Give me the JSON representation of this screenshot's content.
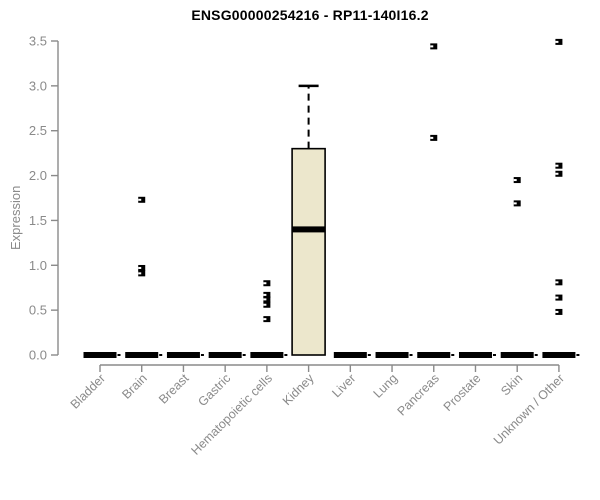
{
  "chart_data": {
    "type": "boxplot",
    "title": "ENSG00000254216 - RP11-140I16.2",
    "ylabel": "Expression",
    "xlabel": "",
    "ylim": [
      0,
      3.5
    ],
    "yticks": [
      "0.0",
      "0.5",
      "1.0",
      "1.5",
      "2.0",
      "2.5",
      "3.0",
      "3.5"
    ],
    "grid": false,
    "legend": "none",
    "categories": [
      "Bladder",
      "Brain",
      "Breast",
      "Gastric",
      "Hematopoietic cells",
      "Kidney",
      "Liver",
      "Lung",
      "Pancreas",
      "Prostate",
      "Skin",
      "Unknown / Other"
    ],
    "series": [
      {
        "category": "Bladder",
        "whisker_low": 0,
        "q1": 0,
        "median": 0,
        "q3": 0,
        "whisker_high": 0,
        "outliers": []
      },
      {
        "category": "Brain",
        "whisker_low": 0,
        "q1": 0,
        "median": 0,
        "q3": 0,
        "whisker_high": 0,
        "outliers": [
          1.73,
          0.97,
          0.91
        ]
      },
      {
        "category": "Breast",
        "whisker_low": 0,
        "q1": 0,
        "median": 0,
        "q3": 0,
        "whisker_high": 0,
        "outliers": []
      },
      {
        "category": "Gastric",
        "whisker_low": 0,
        "q1": 0,
        "median": 0,
        "q3": 0,
        "whisker_high": 0,
        "outliers": []
      },
      {
        "category": "Hematopoietic cells",
        "whisker_low": 0,
        "q1": 0,
        "median": 0,
        "q3": 0,
        "whisker_high": 0,
        "outliers": [
          0.8,
          0.67,
          0.62,
          0.56,
          0.4
        ]
      },
      {
        "category": "Kidney",
        "whisker_low": 0,
        "q1": 0,
        "median": 1.4,
        "q3": 2.3,
        "whisker_high": 3.0,
        "outliers": []
      },
      {
        "category": "Liver",
        "whisker_low": 0,
        "q1": 0,
        "median": 0,
        "q3": 0,
        "whisker_high": 0,
        "outliers": []
      },
      {
        "category": "Lung",
        "whisker_low": 0,
        "q1": 0,
        "median": 0,
        "q3": 0,
        "whisker_high": 0,
        "outliers": []
      },
      {
        "category": "Pancreas",
        "whisker_low": 0,
        "q1": 0,
        "median": 0,
        "q3": 0,
        "whisker_high": 0,
        "outliers": [
          3.44,
          2.42
        ]
      },
      {
        "category": "Prostate",
        "whisker_low": 0,
        "q1": 0,
        "median": 0,
        "q3": 0,
        "whisker_high": 0,
        "outliers": []
      },
      {
        "category": "Skin",
        "whisker_low": 0,
        "q1": 0,
        "median": 0,
        "q3": 0,
        "whisker_high": 0,
        "outliers": [
          1.95,
          1.69
        ]
      },
      {
        "category": "Unknown / Other",
        "whisker_low": 0,
        "q1": 0,
        "median": 0,
        "q3": 0,
        "whisker_high": 0,
        "outliers": [
          3.49,
          2.11,
          2.02,
          0.81,
          0.64,
          0.48
        ]
      }
    ],
    "colors": {
      "box_fill": "#ece7cc",
      "box_stroke": "#000000",
      "median": "#000000",
      "outlier": "#000000",
      "axis": "#8a8a8a",
      "tick_label": "#8a8a8a",
      "title": "#000000"
    }
  }
}
